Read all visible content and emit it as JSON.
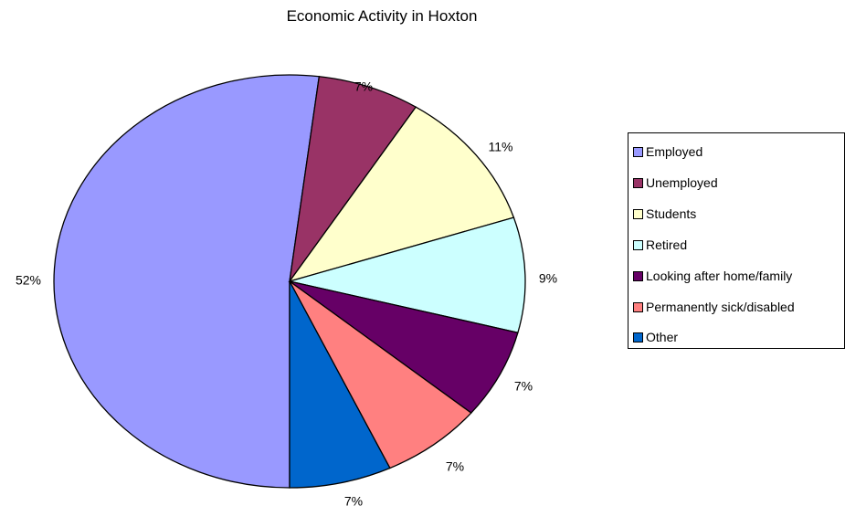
{
  "chart_data": {
    "type": "pie",
    "title": "Economic Activity in Hoxton",
    "legend_position": "right",
    "slices": [
      {
        "label": "Employed",
        "percent": 52,
        "value_label": "52%",
        "color": "#9999FF"
      },
      {
        "label": "Unemployed",
        "percent": 7,
        "value_label": "7%",
        "color": "#993366"
      },
      {
        "label": "Students",
        "percent": 11,
        "value_label": "11%",
        "color": "#FFFFCC"
      },
      {
        "label": "Retired",
        "percent": 9,
        "value_label": "9%",
        "color": "#CCFFFF"
      },
      {
        "label": "Looking after home/family",
        "percent": 7,
        "value_label": "7%",
        "color": "#660066"
      },
      {
        "label": "Permanently sick/disabled",
        "percent": 7,
        "value_label": "7%",
        "color": "#FF8080"
      },
      {
        "label": "Other",
        "percent": 7,
        "value_label": "7%",
        "color": "#0066CC"
      }
    ]
  }
}
